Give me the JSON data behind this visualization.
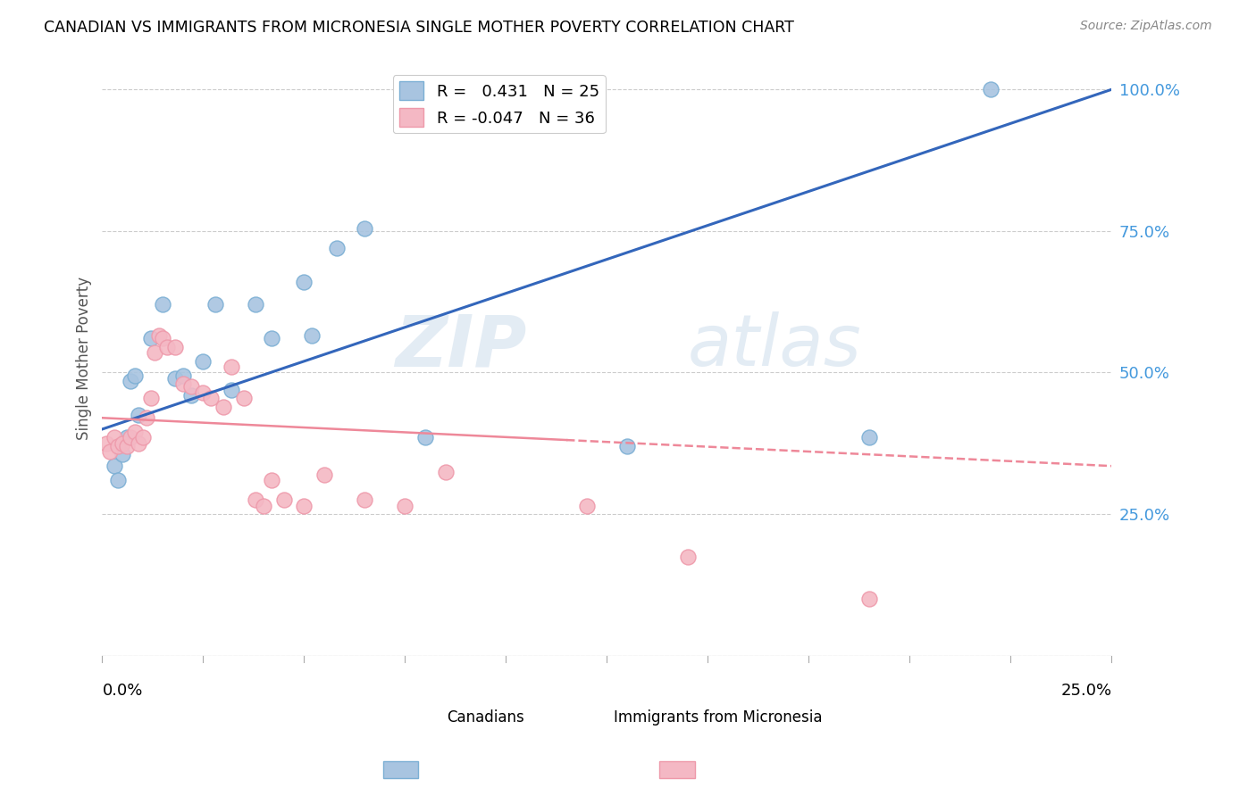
{
  "title": "CANADIAN VS IMMIGRANTS FROM MICRONESIA SINGLE MOTHER POVERTY CORRELATION CHART",
  "source": "Source: ZipAtlas.com",
  "ylabel": "Single Mother Poverty",
  "legend_blue_r": "0.431",
  "legend_blue_n": "25",
  "legend_pink_r": "-0.047",
  "legend_pink_n": "36",
  "blue_color": "#A8C4E0",
  "pink_color": "#F4B8C4",
  "blue_line_color": "#3366BB",
  "pink_line_color": "#EE8899",
  "blue_dot_edge": "#7BAFD4",
  "pink_dot_edge": "#EE99AA",
  "canadians_x": [
    0.003,
    0.004,
    0.005,
    0.006,
    0.007,
    0.008,
    0.009,
    0.012,
    0.015,
    0.018,
    0.02,
    0.022,
    0.025,
    0.028,
    0.032,
    0.038,
    0.042,
    0.05,
    0.052,
    0.058,
    0.065,
    0.08,
    0.13,
    0.19,
    0.22
  ],
  "canadians_y": [
    0.335,
    0.31,
    0.355,
    0.385,
    0.485,
    0.495,
    0.425,
    0.56,
    0.62,
    0.49,
    0.495,
    0.46,
    0.52,
    0.62,
    0.47,
    0.62,
    0.56,
    0.66,
    0.565,
    0.72,
    0.755,
    0.385,
    0.37,
    0.385,
    1.0
  ],
  "micronesia_x": [
    0.001,
    0.002,
    0.003,
    0.004,
    0.005,
    0.006,
    0.007,
    0.008,
    0.009,
    0.01,
    0.011,
    0.012,
    0.013,
    0.014,
    0.015,
    0.016,
    0.018,
    0.02,
    0.022,
    0.025,
    0.027,
    0.03,
    0.032,
    0.035,
    0.038,
    0.04,
    0.042,
    0.045,
    0.05,
    0.055,
    0.065,
    0.075,
    0.085,
    0.12,
    0.145,
    0.19
  ],
  "micronesia_y": [
    0.375,
    0.36,
    0.385,
    0.37,
    0.375,
    0.37,
    0.385,
    0.395,
    0.375,
    0.385,
    0.42,
    0.455,
    0.535,
    0.565,
    0.56,
    0.545,
    0.545,
    0.48,
    0.475,
    0.465,
    0.455,
    0.44,
    0.51,
    0.455,
    0.275,
    0.265,
    0.31,
    0.275,
    0.265,
    0.32,
    0.275,
    0.265,
    0.325,
    0.265,
    0.175,
    0.1
  ],
  "xlim": [
    0.0,
    0.25
  ],
  "ylim": [
    0.0,
    1.05
  ],
  "ytick_vals": [
    0.0,
    0.25,
    0.5,
    0.75,
    1.0
  ],
  "ytick_labels": [
    "",
    "25.0%",
    "50.0%",
    "75.0%",
    "100.0%"
  ]
}
